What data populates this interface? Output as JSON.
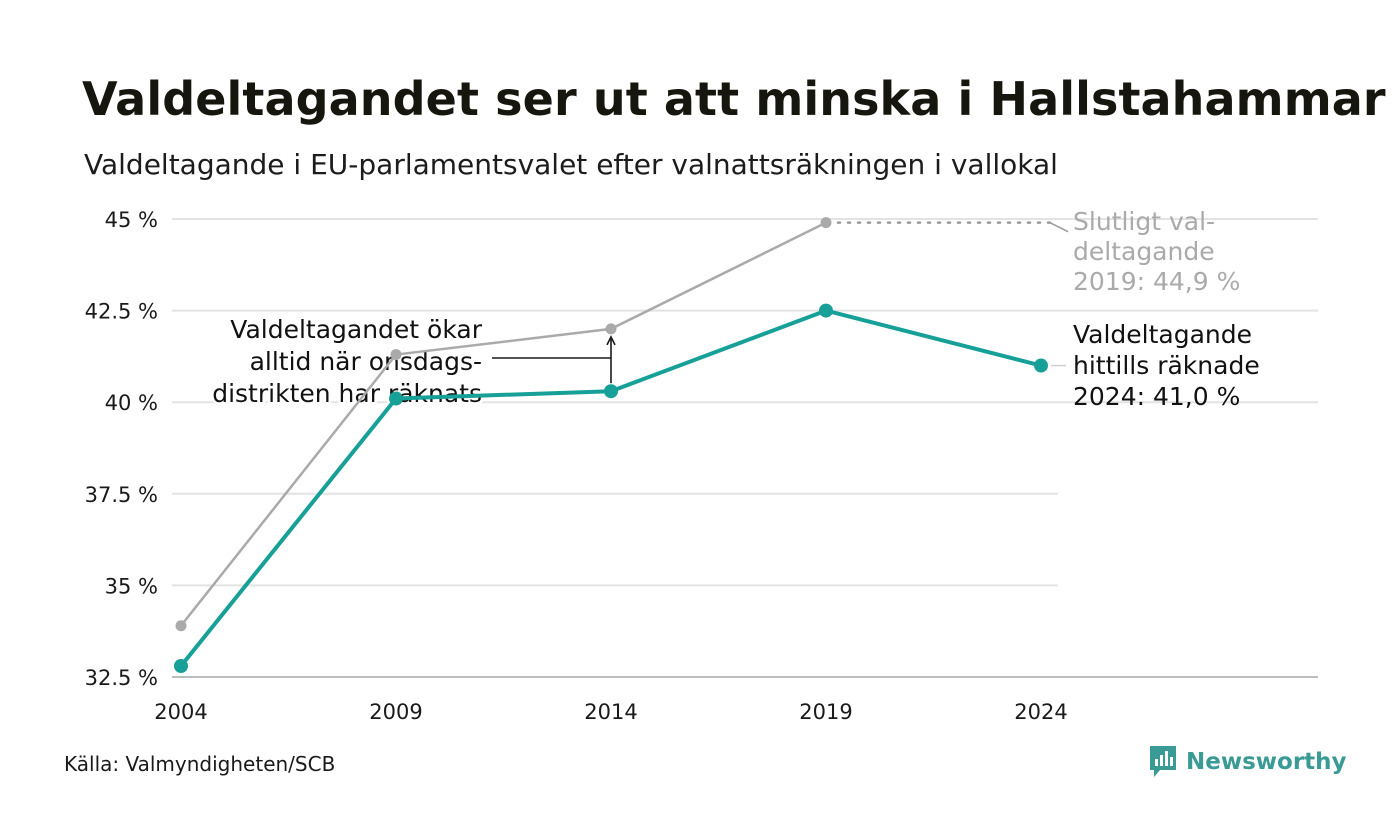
{
  "title": "Valdeltagandet ser ut att minska i Hallstahammar",
  "subtitle": "Valdeltagande i EU-parlamentsvalet efter valnattsräkningen i vallokal",
  "source": "Källa: Valmyndigheten/SCB",
  "logo": {
    "text": "Newsworthy",
    "icon": "newsworthy-logo-icon",
    "color": "#3a9a96"
  },
  "chart_data": {
    "type": "line",
    "x": [
      2004,
      2009,
      2014,
      2019,
      2024
    ],
    "x_tick_labels": [
      "2004",
      "2009",
      "2014",
      "2019",
      "2024"
    ],
    "y_tick_values": [
      32.5,
      35,
      37.5,
      40,
      42.5,
      45
    ],
    "y_tick_labels": [
      "32.5 %",
      "35 %",
      "37.5 %",
      "40 %",
      "42.5 %",
      "45 %"
    ],
    "ylim": [
      32.5,
      45
    ],
    "grid": true,
    "series": [
      {
        "key": "final",
        "color": "#aaaaaa",
        "values": [
          33.9,
          41.3,
          42.0,
          44.9,
          null
        ]
      },
      {
        "key": "election_night",
        "color": "#16a097",
        "values": [
          32.8,
          40.1,
          40.3,
          42.5,
          41.0
        ]
      }
    ],
    "annotations": {
      "final_label": [
        "Slutligt val-",
        "deltagande",
        "2019: 44,9 %"
      ],
      "current_label": [
        "Valdeltagande",
        "hittills räknade",
        "2024: 41,0 %"
      ],
      "gap_label": [
        "Valdeltagandet ökar",
        "alltid när onsdags-",
        "distrikten har räknats"
      ]
    }
  }
}
